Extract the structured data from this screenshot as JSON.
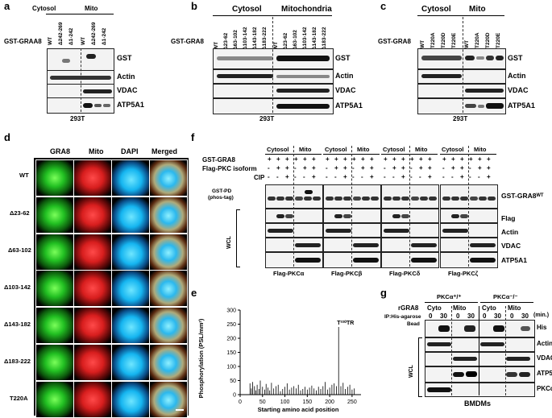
{
  "panels": {
    "a": {
      "letter": "a",
      "construct": "GST-GRAA8",
      "cytosol": "Cytosol",
      "mito": "Mito",
      "lanes": [
        "WT",
        "Δ242-269",
        "Δ1-242",
        "WT",
        "Δ242-269",
        "Δ1-242"
      ],
      "rows": [
        "GST",
        "Actin",
        "VDAC",
        "ATP5A1"
      ],
      "cell": "293T"
    },
    "b": {
      "letter": "b",
      "construct": "GST-GRA8",
      "cytosol": "Cytosol",
      "mito": "Mitochondria",
      "lanes": [
        "WT",
        "Δ23-62",
        "Δ63-102",
        "Δ103-142",
        "Δ143-182",
        "Δ183-222",
        "WT",
        "Δ23-62",
        "Δ63-102",
        "Δ103-142",
        "Δ143-182",
        "Δ183-222"
      ],
      "rows": [
        "GST",
        "Actin",
        "VDAC",
        "ATP5A1"
      ],
      "cell": "293T"
    },
    "c": {
      "letter": "c",
      "construct": "GST-GRA8",
      "cytosol": "Cytosol",
      "mito": "Mito",
      "lanes": [
        "WT",
        "T220A",
        "T220D",
        "T220E",
        "WT",
        "T220A",
        "T220D",
        "T220E"
      ],
      "rows": [
        "GST",
        "Actin",
        "VDAC",
        "ATP5A1"
      ],
      "cell": "293T"
    },
    "d": {
      "letter": "d",
      "columns": [
        "GRA8",
        "Mito",
        "DAPI",
        "Merged"
      ],
      "rows": [
        "WT",
        "Δ23-62",
        "Δ63-102",
        "Δ103-142",
        "Δ143-182",
        "Δ183-222",
        "T220A"
      ]
    },
    "e": {
      "letter": "e",
      "ylabel": "Phosphorylation (PSL/mm²)",
      "xlabel": "Starting amino acid position",
      "annotation": "T²²⁰TR"
    },
    "f": {
      "letter": "f",
      "cond_labels": [
        "GST-GRA8",
        "Flag-PKC isoform",
        "CIP"
      ],
      "cytosol": "Cytosol",
      "mito": "Mito",
      "pattern": [
        [
          "+",
          "+",
          "+"
        ],
        [
          "-",
          "+",
          "+"
        ],
        [
          "-",
          "-",
          "+"
        ]
      ],
      "gst_pd": "GST-PD",
      "phos_tag": "(phos-tag)",
      "wcl": "WCL",
      "rows_right": [
        "GST-GRA8ᵂᵀ",
        "Flag",
        "Actin",
        "VDAC",
        "ATP5A1"
      ],
      "isoforms": [
        "Flag-PKCα",
        "Flag-PKCβ",
        "Flag-PKCδ",
        "Flag-PKCζ"
      ]
    },
    "g": {
      "letter": "g",
      "pkc_wt": "PKCα⁺/⁺",
      "pkc_ko": "PKCα⁻/⁻",
      "rgra8": "rGRA8",
      "ip": "IP:His-agarose",
      "bead": "Bead",
      "cyto": "Cyto",
      "mito": "Mito",
      "times": [
        "0",
        "30",
        "0",
        "30",
        "0",
        "30",
        "0",
        "30"
      ],
      "unit": "(min.)",
      "wcl": "WCL",
      "rows": [
        "His",
        "Actin",
        "VDAC",
        "ATP5A1",
        "PKCα"
      ],
      "cell": "BMDMs"
    }
  },
  "chart_data": {
    "type": "bar",
    "xlabel": "Starting amino acid position",
    "ylabel": "Phosphorylation (PSL/mm²)",
    "xlim": [
      0,
      270
    ],
    "ylim": [
      0,
      300
    ],
    "xticks": [
      0,
      50,
      100,
      150,
      200,
      250
    ],
    "yticks": [
      0,
      50,
      100,
      150,
      200,
      250,
      300
    ],
    "annotation": "T²²⁰TR",
    "x": [
      22,
      25,
      28,
      32,
      35,
      38,
      42,
      45,
      50,
      55,
      58,
      62,
      66,
      70,
      75,
      80,
      85,
      90,
      95,
      100,
      105,
      110,
      115,
      120,
      125,
      130,
      135,
      140,
      145,
      150,
      155,
      160,
      165,
      170,
      175,
      180,
      185,
      190,
      195,
      200,
      205,
      210,
      215,
      220,
      225,
      230,
      235,
      240,
      245,
      250,
      255
    ],
    "values": [
      40,
      22,
      45,
      30,
      15,
      35,
      20,
      50,
      28,
      18,
      38,
      25,
      15,
      42,
      22,
      30,
      35,
      12,
      20,
      28,
      40,
      18,
      25,
      30,
      22,
      35,
      15,
      20,
      28,
      18,
      25,
      32,
      22,
      15,
      28,
      20,
      30,
      45,
      18,
      25,
      35,
      40,
      30,
      240,
      30,
      42,
      20,
      28,
      35,
      18,
      22
    ]
  }
}
